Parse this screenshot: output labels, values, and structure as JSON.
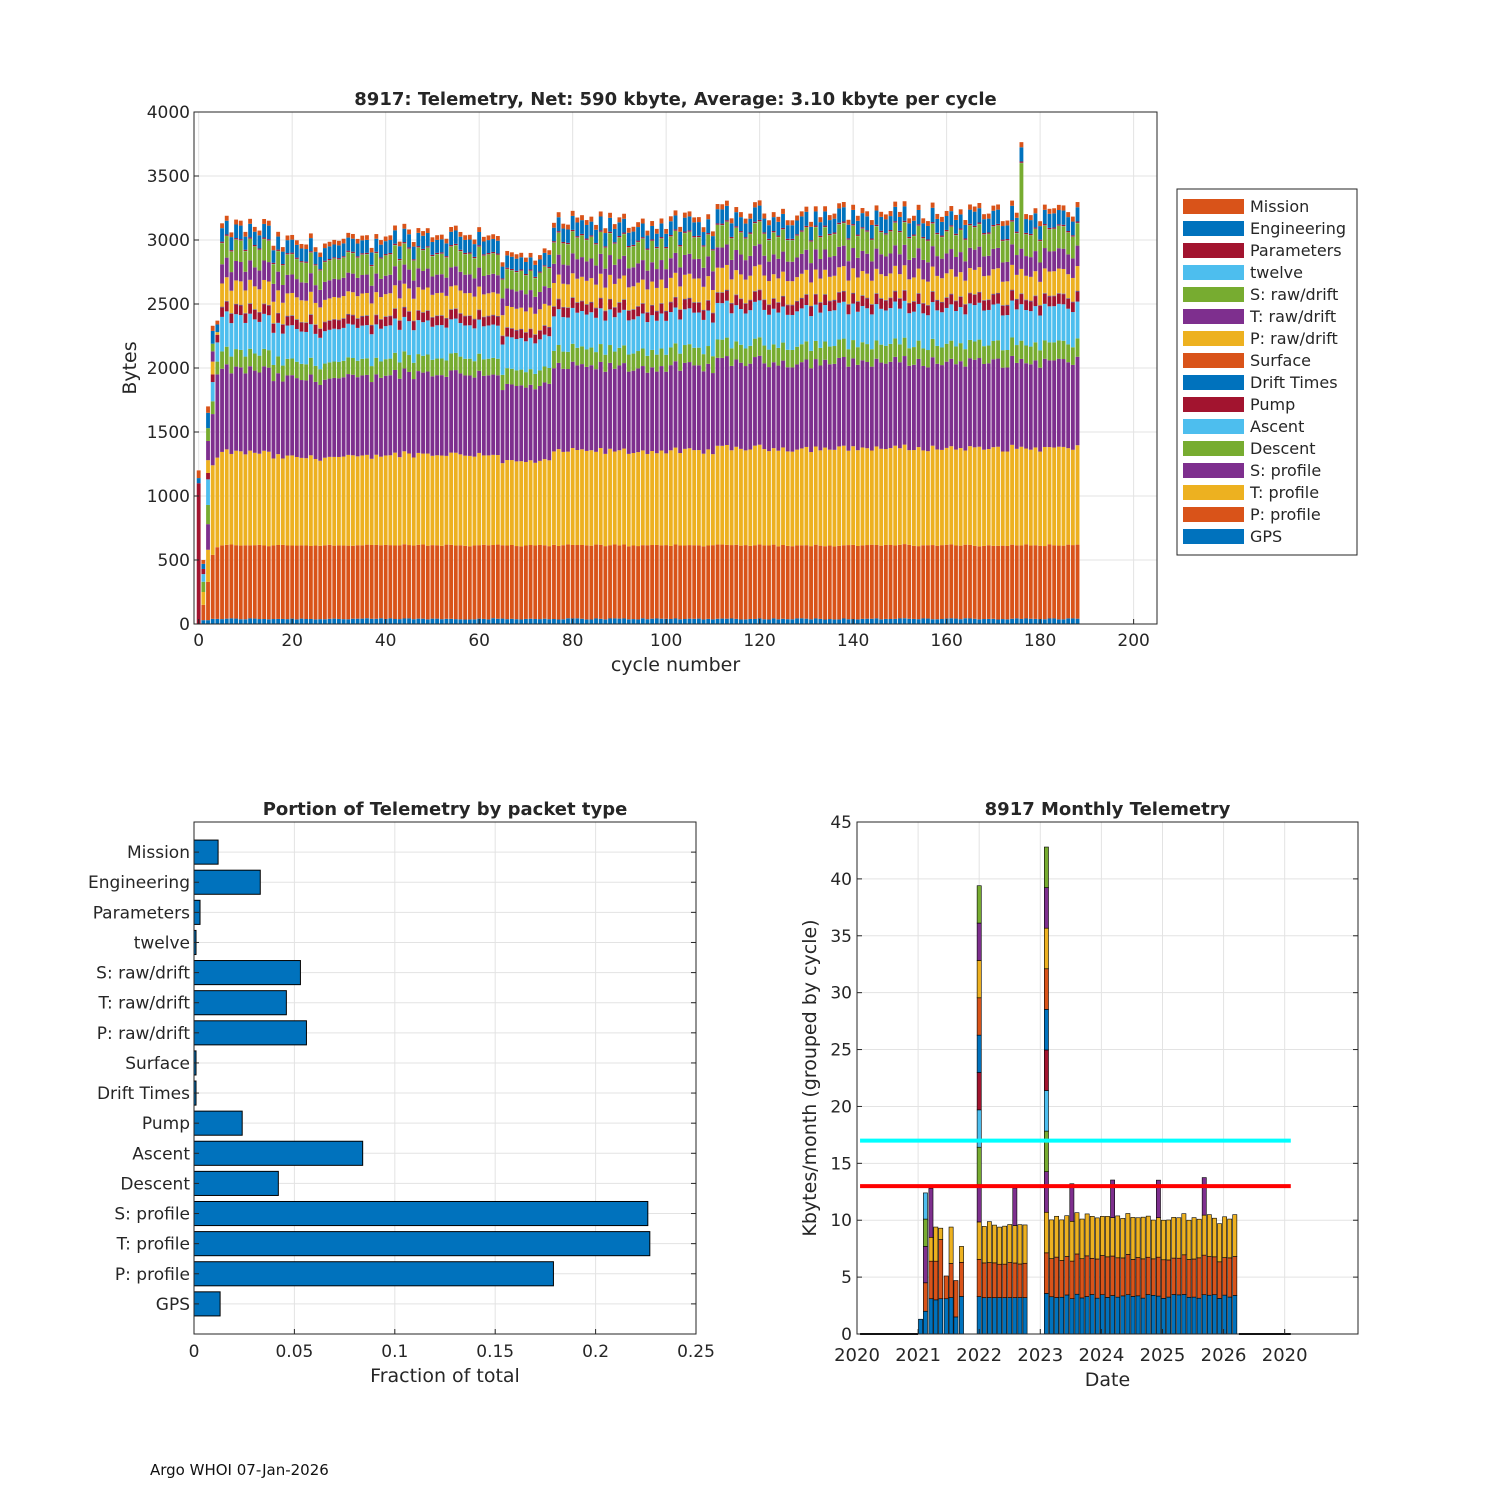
{
  "footer": "Argo WHOI 07-Jan-2026",
  "colors": {
    "blue": "#0072BD",
    "orange": "#D95319",
    "yellow": "#EDB120",
    "purple": "#7E2F8E",
    "green": "#77AC30",
    "light_blue": "#4DBEEE",
    "dark_red": "#A2142F",
    "cyan_line": "#00FFFF",
    "red_line": "#FF0000"
  },
  "chart_data": [
    {
      "id": "telemetry_per_cycle",
      "type": "bar",
      "stacked": true,
      "title": "8917: Telemetry, Net:    590 kbyte,  Average: 3.10 kbyte per cycle",
      "xlabel": "cycle number",
      "ylabel": "Bytes",
      "xlim": [
        -1,
        205
      ],
      "ylim": [
        0,
        4000
      ],
      "xticks": [
        0,
        20,
        40,
        60,
        80,
        100,
        120,
        140,
        160,
        180,
        200
      ],
      "yticks": [
        0,
        500,
        1000,
        1500,
        2000,
        2500,
        3000,
        3500,
        4000
      ],
      "grid": true,
      "legend_position": "outside-right",
      "legend": [
        "Mission",
        "Engineering",
        "Parameters",
        "twelve",
        "S: raw/drift",
        "T: raw/drift",
        "P: raw/drift",
        "Surface",
        "Drift Times",
        "Pump",
        "Ascent",
        "Descent",
        "S: profile",
        "T: profile",
        "P: profile",
        "GPS"
      ],
      "legend_colors": [
        "#D95319",
        "#0072BD",
        "#A2142F",
        "#4DBEEE",
        "#77AC30",
        "#7E2F8E",
        "#EDB120",
        "#D95319",
        "#0072BD",
        "#A2142F",
        "#4DBEEE",
        "#77AC30",
        "#7E2F8E",
        "#EDB120",
        "#D95319",
        "#0072BD"
      ],
      "cycles": [
        0,
        188
      ],
      "typical_bytes_per_component_bottom_to_top": {
        "GPS": 40,
        "P: profile": 575,
        "T: profile": 730,
        "S: profile": 650,
        "Descent": 135,
        "Ascent": 270,
        "Pump": 75,
        "Drift Times": 3,
        "Surface": 3,
        "P: raw/drift": 180,
        "T: raw/drift": 150,
        "S: raw/drift": 165,
        "twelve": 2,
        "Parameters": 10,
        "Engineering": 105,
        "Mission": 38
      },
      "total_bytes_by_segment": [
        {
          "cycles": [
            5,
            15
          ],
          "approx_total": 3100
        },
        {
          "cycles": [
            16,
            38
          ],
          "approx_total": 2950
        },
        {
          "cycles": [
            39,
            64
          ],
          "approx_total": 3050
        },
        {
          "cycles": [
            65,
            75
          ],
          "approx_total": 2800
        },
        {
          "cycles": [
            76,
            110
          ],
          "approx_total": 3150
        },
        {
          "cycles": [
            111,
            188
          ],
          "approx_total": 3250
        }
      ],
      "peak": {
        "cycle": 176,
        "total": 3800
      }
    },
    {
      "id": "portion_by_packet_type",
      "type": "bar",
      "orientation": "horizontal",
      "title": "Portion of Telemetry by packet type",
      "xlabel": "Fraction of total",
      "ylabel": "",
      "xlim": [
        0,
        0.25
      ],
      "xticks": [
        0,
        0.05,
        0.1,
        0.15,
        0.2,
        0.25
      ],
      "xtick_labels": [
        "0",
        "0.05",
        "0.1",
        "0.15",
        "0.2",
        "0.25"
      ],
      "grid": true,
      "categories": [
        "Mission",
        "Engineering",
        "Parameters",
        "twelve",
        "S: raw/drift",
        "T: raw/drift",
        "P: raw/drift",
        "Surface",
        "Drift Times",
        "Pump",
        "Ascent",
        "Descent",
        "S: profile",
        "T: profile",
        "P: profile",
        "GPS"
      ],
      "values": [
        0.012,
        0.033,
        0.003,
        0.001,
        0.053,
        0.046,
        0.056,
        0.001,
        0.001,
        0.024,
        0.084,
        0.042,
        0.226,
        0.227,
        0.179,
        0.013
      ]
    },
    {
      "id": "monthly_telemetry",
      "type": "bar",
      "stacked": true,
      "title": "8917 Monthly Telemetry",
      "xlabel": "Date",
      "ylabel": "Kbytes/month (grouped by cycle)",
      "ylim": [
        0,
        45
      ],
      "yticks": [
        0,
        5,
        10,
        15,
        20,
        25,
        30,
        35,
        40,
        45
      ],
      "xtick_labels": [
        "2020",
        "2021",
        "2022",
        "2023",
        "2024",
        "2025",
        "2026",
        "2020"
      ],
      "grid": true,
      "reference_lines": [
        {
          "value": 17,
          "color": "#00FFFF"
        },
        {
          "value": 13,
          "color": "#FF0000"
        }
      ],
      "notable_months": [
        {
          "date": "2022-01",
          "total_kbytes": 39.4
        },
        {
          "date": "2023-02",
          "total_kbytes": 42.8
        },
        {
          "date": "2021-01",
          "total_kbytes": 12.4
        }
      ],
      "typical_month_kbytes": {
        "GPS+P profile": 3.3,
        "T profile": 3.3,
        "S profile": 3.5,
        "total": 10.1
      }
    }
  ]
}
